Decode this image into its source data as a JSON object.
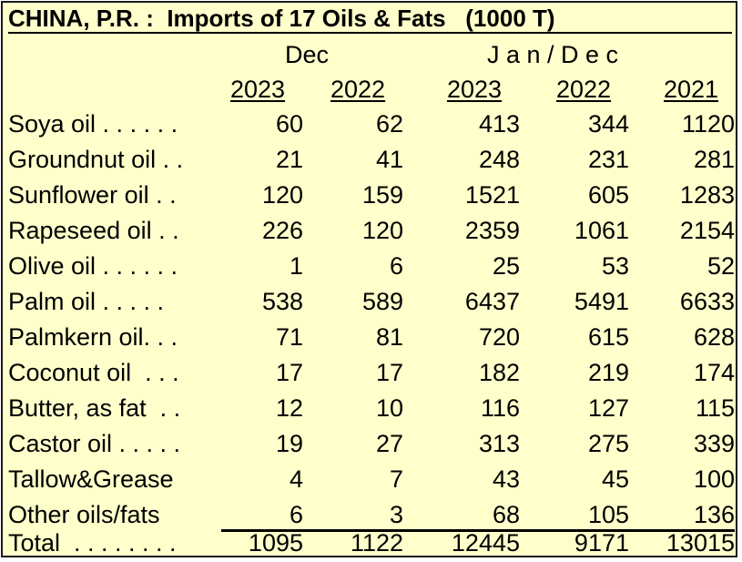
{
  "title": "CHINA, P.R. :  Imports of 17 Oils & Fats   (1000 T)",
  "headers": {
    "group_dec": "Dec",
    "group_jandec": "J a n / D e c",
    "years": [
      "2023",
      "2022",
      "2023",
      "2022",
      "2021"
    ]
  },
  "rows": [
    {
      "label": "Soya oil . . . . . .",
      "values": [
        "60",
        "62",
        "413",
        "344",
        "1120"
      ]
    },
    {
      "label": "Groundnut oil . .",
      "values": [
        "21",
        "41",
        "248",
        "231",
        "281"
      ]
    },
    {
      "label": "Sunflower oil . .",
      "values": [
        "120",
        "159",
        "1521",
        "605",
        "1283"
      ]
    },
    {
      "label": "Rapeseed oil . .",
      "values": [
        "226",
        "120",
        "2359",
        "1061",
        "2154"
      ]
    },
    {
      "label": "Olive oil . . . . . .",
      "values": [
        "1",
        "6",
        "25",
        "53",
        "52"
      ]
    },
    {
      "label": "Palm oil . . . . .",
      "values": [
        "538",
        "589",
        "6437",
        "5491",
        "6633"
      ]
    },
    {
      "label": "Palmkern oil. . .",
      "values": [
        "71",
        "81",
        "720",
        "615",
        "628"
      ]
    },
    {
      "label": "Coconut oil  . . .",
      "values": [
        "17",
        "17",
        "182",
        "219",
        "174"
      ]
    },
    {
      "label": "Butter, as fat  . .",
      "values": [
        "12",
        "10",
        "116",
        "127",
        "115"
      ]
    },
    {
      "label": "Castor oil . . . . .",
      "values": [
        "19",
        "27",
        "313",
        "275",
        "339"
      ]
    },
    {
      "label": "Tallow&Grease",
      "values": [
        "4",
        "7",
        "43",
        "45",
        "100"
      ]
    },
    {
      "label": "Other oils/fats",
      "values": [
        "6",
        "3",
        "68",
        "105",
        "136"
      ]
    },
    {
      "label": "Total  . . . . . . . .",
      "values": [
        "1095",
        "1122",
        "12445",
        "9171",
        "13015"
      ]
    }
  ],
  "colors": {
    "background": "#ffffcc",
    "text": "#000000",
    "border": "#1a1a1a"
  }
}
